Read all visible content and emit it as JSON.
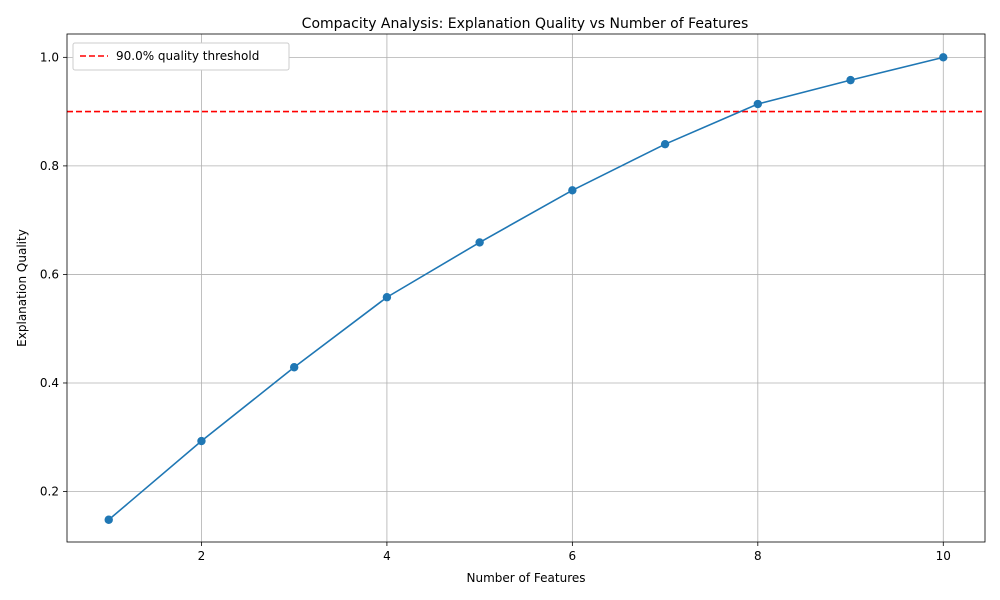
{
  "chart_data": {
    "type": "line",
    "title": "Compacity Analysis: Explanation Quality vs Number of Features",
    "xlabel": "Number of Features",
    "ylabel": "Explanation Quality",
    "xlim": [
      0.55,
      10.45
    ],
    "ylim": [
      0.107,
      1.043
    ],
    "x_ticks": [
      2,
      4,
      6,
      8,
      10
    ],
    "y_ticks": [
      0.2,
      0.4,
      0.6,
      0.8,
      1.0
    ],
    "x_tick_labels": [
      "2",
      "4",
      "6",
      "8",
      "10"
    ],
    "y_tick_labels": [
      "0.2",
      "0.4",
      "0.6",
      "0.8",
      "1.0"
    ],
    "grid": true,
    "legend_position": "upper-left",
    "series": [
      {
        "color": "#1f77b4",
        "marker": "circle",
        "x": [
          1,
          2,
          3,
          4,
          5,
          6,
          7,
          8,
          9,
          10
        ],
        "y": [
          0.148,
          0.293,
          0.429,
          0.558,
          0.659,
          0.755,
          0.84,
          0.914,
          0.958,
          1.0
        ]
      }
    ],
    "threshold": {
      "label": "90.0% quality threshold",
      "y": 0.9,
      "color": "#ff0000",
      "style": "dashed"
    }
  }
}
